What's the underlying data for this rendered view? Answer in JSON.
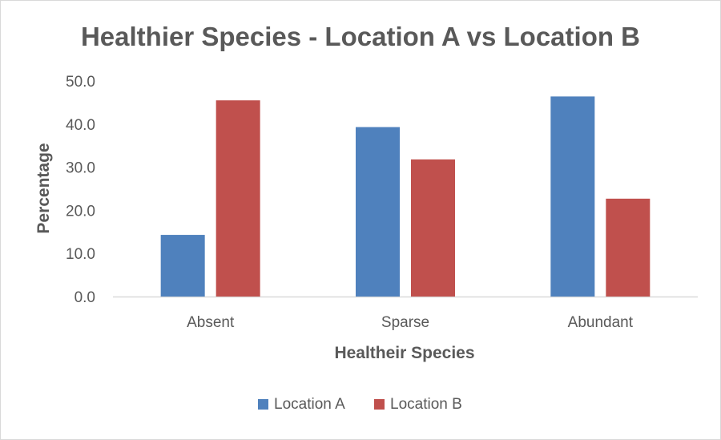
{
  "chart_data": {
    "type": "bar",
    "title": "Healthier Species - Location A vs Location B",
    "xlabel": "Healtheir Species",
    "ylabel": "Percentage",
    "categories": [
      "Absent",
      "Sparse",
      "Abundant"
    ],
    "series": [
      {
        "name": "Location A",
        "color": "#4f81bd",
        "values": [
          14.3,
          39.3,
          46.4
        ]
      },
      {
        "name": "Location B",
        "color": "#c0504d",
        "values": [
          45.5,
          31.8,
          22.7
        ]
      }
    ],
    "ylim": [
      0,
      50
    ],
    "yticks": [
      "0.0",
      "10.0",
      "20.0",
      "30.0",
      "40.0",
      "50.0"
    ],
    "grid": false,
    "legend_position": "bottom",
    "axis_color": "#d9d9d9",
    "text_color": "#595959"
  }
}
